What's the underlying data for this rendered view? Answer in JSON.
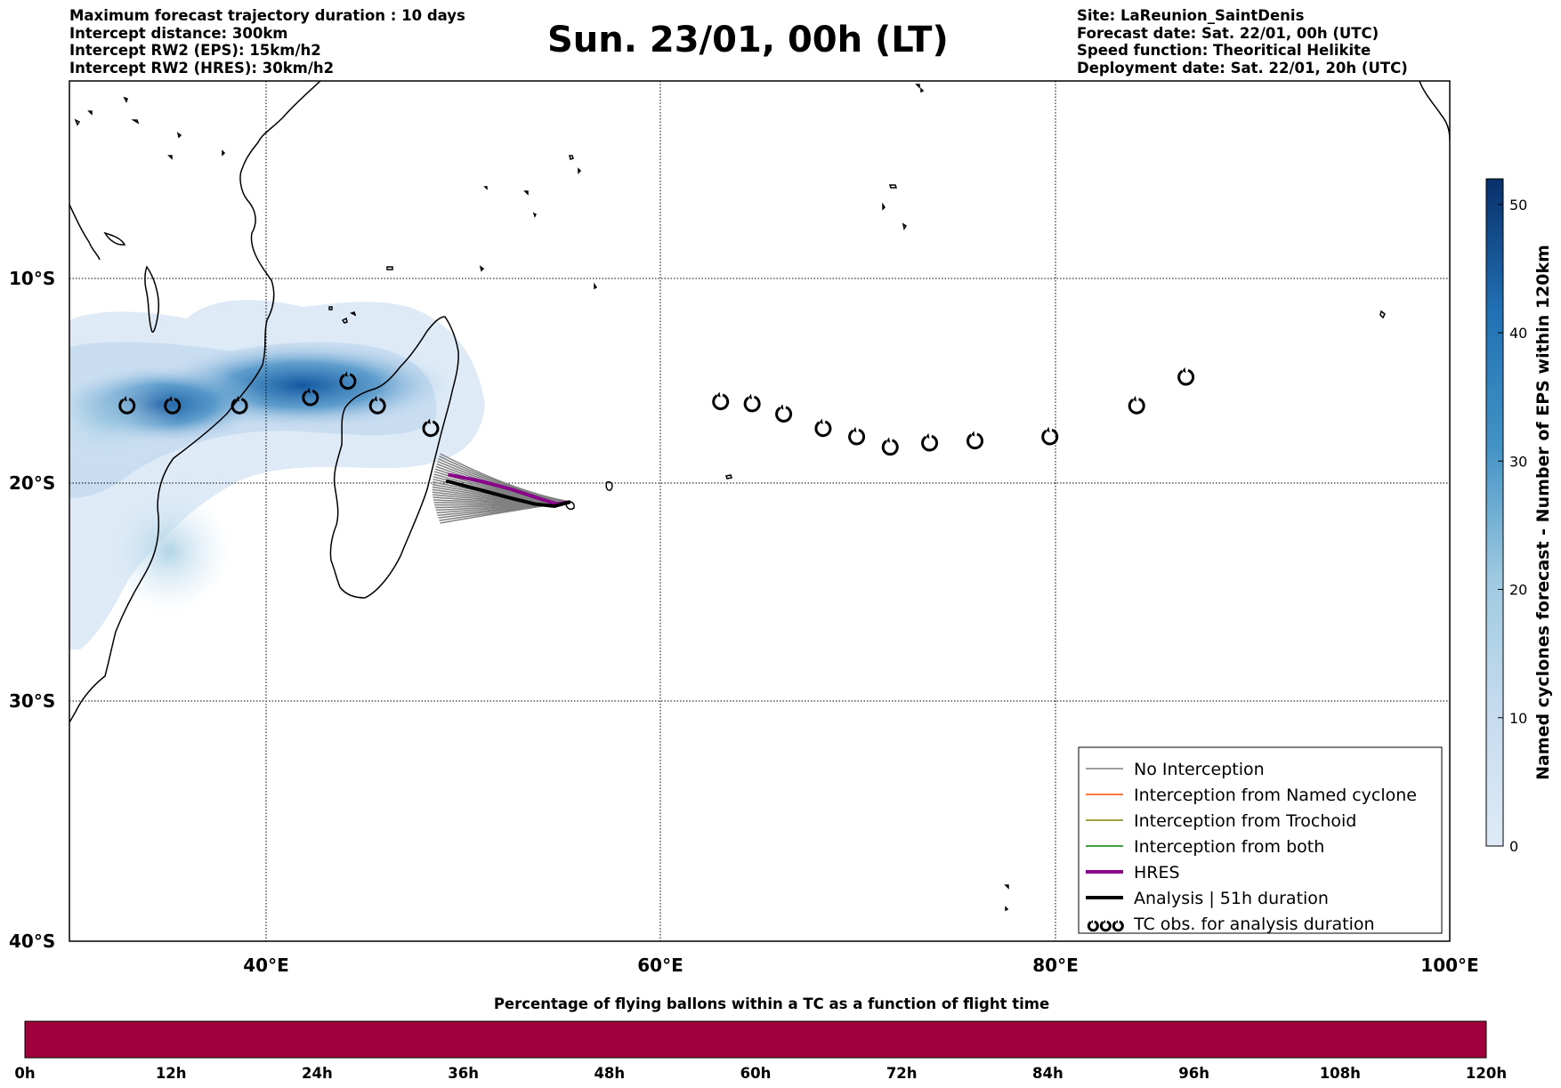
{
  "header_left": [
    "Maximum forecast trajectory duration : 10 days",
    "Intercept distance: 300km",
    "Intercept RW2 (EPS):  15km/h2",
    "Intercept RW2 (HRES): 30km/h2"
  ],
  "title": "Sun. 23/01, 00h (LT)",
  "header_right": [
    "Site: LaReunion_SaintDenis",
    "Forecast date: Sat. 22/01, 00h (UTC)",
    "Speed function: Theoritical Helikite",
    "Deployment date: Sat. 22/01, 20h (UTC)"
  ],
  "map": {
    "lat_labels": [
      "10°S",
      "20°S",
      "30°S",
      "40°S"
    ],
    "lon_labels": [
      "40°E",
      "60°E",
      "80°E",
      "100°E"
    ],
    "lon_range": [
      30,
      100
    ],
    "lat_range": [
      -40,
      2
    ],
    "colors": {
      "land_outline": "#000000",
      "grid": "#000000",
      "density": "#08519c"
    }
  },
  "legend": [
    {
      "label": "No Interception",
      "color": "#808080",
      "width": 1.5
    },
    {
      "label": "Interception from Named cyclone",
      "color": "#ff4500",
      "width": 1.5
    },
    {
      "label": "Interception from Trochoid",
      "color": "#808000",
      "width": 1.5
    },
    {
      "label": "Interception from both",
      "color": "#008000",
      "width": 1.5
    },
    {
      "label": "HRES",
      "color": "#8b008b",
      "width": 4
    },
    {
      "label": "Analysis | 51h duration",
      "color": "#000000",
      "width": 4
    },
    {
      "label": "TC obs. for analysis duration",
      "color": "#000000",
      "symbol": "cyclone-icon"
    }
  ],
  "colorbar": {
    "label": "Named cyclones forecast - Number of EPS within 120km",
    "ticks": [
      "0",
      "10",
      "20",
      "30",
      "40",
      "50"
    ],
    "max": 52,
    "colors": [
      "#deebf7",
      "#08306b"
    ]
  },
  "tc_observations": [
    [
      32.9,
      -16.3
    ],
    [
      35.2,
      -16.3
    ],
    [
      38.6,
      -16.3
    ],
    [
      42.2,
      -15.9
    ],
    [
      44.1,
      -15.1
    ],
    [
      45.6,
      -16.3
    ],
    [
      48.3,
      -17.4
    ],
    [
      63.0,
      -16.1
    ],
    [
      64.6,
      -16.2
    ],
    [
      66.2,
      -16.7
    ],
    [
      68.2,
      -17.4
    ],
    [
      69.9,
      -17.8
    ],
    [
      71.6,
      -18.3
    ],
    [
      73.6,
      -18.1
    ],
    [
      75.9,
      -18.0
    ],
    [
      79.7,
      -17.8
    ],
    [
      84.1,
      -16.3
    ],
    [
      86.6,
      -14.9
    ]
  ],
  "trajectories": {
    "analysis": [
      [
        55.4,
        -20.9
      ],
      [
        54.6,
        -21.1
      ],
      [
        53.6,
        -21.0
      ],
      [
        52.3,
        -20.7
      ],
      [
        50.7,
        -20.3
      ],
      [
        49.1,
        -19.9
      ]
    ],
    "hres": [
      [
        55.4,
        -20.9
      ],
      [
        54.7,
        -21.0
      ],
      [
        53.7,
        -20.7
      ],
      [
        52.4,
        -20.3
      ],
      [
        50.8,
        -19.9
      ],
      [
        49.2,
        -19.6
      ]
    ]
  },
  "bottom_bar": {
    "title": "Percentage of flying ballons within a TC as a function of flight time",
    "ticks": [
      "0h",
      "12h",
      "24h",
      "36h",
      "48h",
      "60h",
      "72h",
      "84h",
      "96h",
      "108h",
      "120h"
    ],
    "fill_color": "#a0003c"
  }
}
